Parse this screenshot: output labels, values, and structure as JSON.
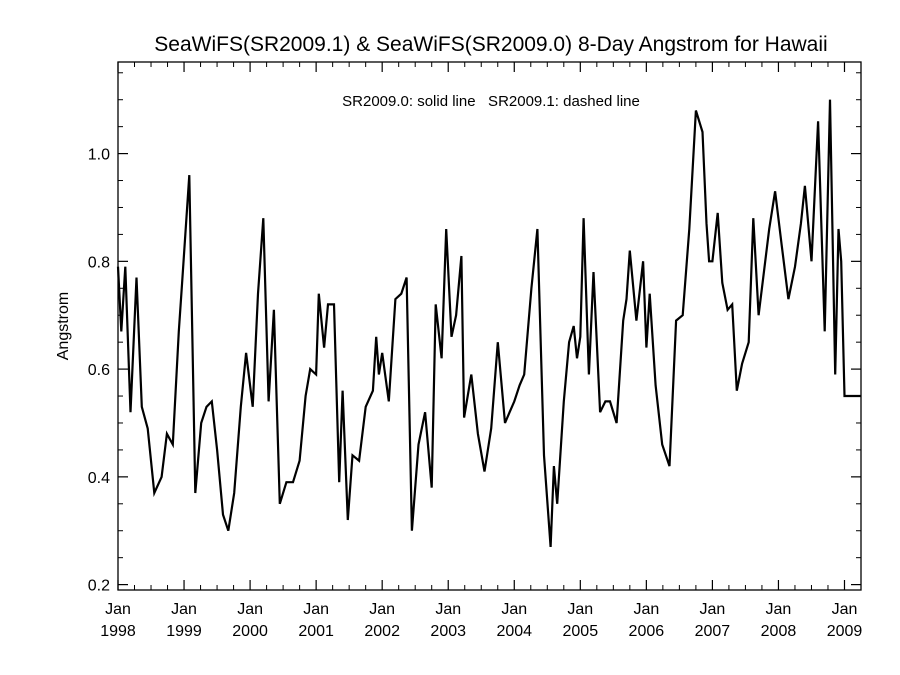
{
  "chart_data": {
    "type": "line",
    "title": "SeaWiFS(SR2009.1) & SeaWiFS(SR2009.0) 8-Day Angstrom for Hawaii",
    "annotation": "SR2009.0: solid line   SR2009.1: dashed line",
    "ylabel": "Angstrom",
    "xlabel": "",
    "xlim": [
      1998.0,
      2009.25
    ],
    "ylim": [
      0.19,
      1.17
    ],
    "y_ticks": [
      0.2,
      0.4,
      0.6,
      0.8,
      1.0
    ],
    "y_tick_labels": [
      "0.2",
      "0.4",
      "0.6",
      "0.8",
      "1.0"
    ],
    "x_ticks": [
      1998,
      1999,
      2000,
      2001,
      2002,
      2003,
      2004,
      2005,
      2006,
      2007,
      2008,
      2009
    ],
    "x_tick_labels": [
      [
        "Jan",
        "1998"
      ],
      [
        "Jan",
        "1999"
      ],
      [
        "Jan",
        "2000"
      ],
      [
        "Jan",
        "2001"
      ],
      [
        "Jan",
        "2002"
      ],
      [
        "Jan",
        "2003"
      ],
      [
        "Jan",
        "2004"
      ],
      [
        "Jan",
        "2005"
      ],
      [
        "Jan",
        "2006"
      ],
      [
        "Jan",
        "2007"
      ],
      [
        "Jan",
        "2008"
      ],
      [
        "Jan",
        "2009"
      ]
    ],
    "grid": false,
    "line_color": "#000000",
    "series": [
      {
        "style": "solid",
        "x": [
          1998.0,
          1998.05,
          1998.11,
          1998.19,
          1998.28,
          1998.36,
          1998.45,
          1998.55,
          1998.66,
          1998.74,
          1998.83,
          1998.92,
          1998.97,
          1999.08,
          1999.17,
          1999.26,
          1999.34,
          1999.42,
          1999.5,
          1999.59,
          1999.67,
          1999.76,
          1999.86,
          1999.94,
          2000.04,
          2000.12,
          2000.2,
          2000.28,
          2000.36,
          2000.45,
          2000.55,
          2000.65,
          2000.75,
          2000.84,
          2000.91,
          2001.0,
          2001.04,
          2001.12,
          2001.18,
          2001.27,
          2001.35,
          2001.4,
          2001.48,
          2001.55,
          2001.65,
          2001.75,
          2001.86,
          2001.91,
          2001.95,
          2002.0,
          2002.1,
          2002.2,
          2002.29,
          2002.37,
          2002.45,
          2002.55,
          2002.65,
          2002.75,
          2002.81,
          2002.9,
          2002.97,
          2003.05,
          2003.12,
          2003.2,
          2003.24,
          2003.35,
          2003.45,
          2003.55,
          2003.65,
          2003.75,
          2003.86,
          2003.93,
          2004.0,
          2004.08,
          2004.15,
          2004.26,
          2004.35,
          2004.45,
          2004.55,
          2004.6,
          2004.65,
          2004.75,
          2004.83,
          2004.9,
          2004.95,
          2005.0,
          2005.05,
          2005.13,
          2005.2,
          2005.3,
          2005.38,
          2005.45,
          2005.55,
          2005.65,
          2005.7,
          2005.75,
          2005.85,
          2005.95,
          2006.0,
          2006.05,
          2006.14,
          2006.24,
          2006.35,
          2006.45,
          2006.55,
          2006.65,
          2006.75,
          2006.85,
          2006.91,
          2006.95,
          2007.0,
          2007.08,
          2007.15,
          2007.23,
          2007.3,
          2007.37,
          2007.45,
          2007.55,
          2007.62,
          2007.7,
          2007.78,
          2007.86,
          2007.95,
          2008.05,
          2008.15,
          2008.25,
          2008.34,
          2008.4,
          2008.5,
          2008.6,
          2008.7,
          2008.78,
          2008.86,
          2008.91,
          2008.95,
          2009.0,
          2009.05,
          2009.1,
          2009.15,
          2009.25
        ],
        "y": [
          0.79,
          0.67,
          0.79,
          0.52,
          0.77,
          0.53,
          0.49,
          0.37,
          0.4,
          0.48,
          0.46,
          0.67,
          0.76,
          0.96,
          0.37,
          0.5,
          0.53,
          0.54,
          0.45,
          0.33,
          0.3,
          0.37,
          0.53,
          0.63,
          0.53,
          0.74,
          0.88,
          0.54,
          0.71,
          0.35,
          0.39,
          0.39,
          0.43,
          0.55,
          0.6,
          0.59,
          0.74,
          0.64,
          0.72,
          0.72,
          0.39,
          0.56,
          0.32,
          0.44,
          0.43,
          0.53,
          0.56,
          0.66,
          0.59,
          0.63,
          0.54,
          0.73,
          0.74,
          0.77,
          0.3,
          0.46,
          0.52,
          0.38,
          0.72,
          0.62,
          0.86,
          0.66,
          0.7,
          0.81,
          0.51,
          0.59,
          0.48,
          0.41,
          0.49,
          0.65,
          0.5,
          0.52,
          0.54,
          0.57,
          0.59,
          0.75,
          0.86,
          0.44,
          0.27,
          0.42,
          0.35,
          0.54,
          0.65,
          0.68,
          0.62,
          0.66,
          0.88,
          0.59,
          0.78,
          0.52,
          0.54,
          0.54,
          0.5,
          0.69,
          0.73,
          0.82,
          0.69,
          0.8,
          0.64,
          0.74,
          0.57,
          0.46,
          0.42,
          0.69,
          0.7,
          0.86,
          1.08,
          1.04,
          0.87,
          0.8,
          0.8,
          0.89,
          0.76,
          0.71,
          0.72,
          0.56,
          0.61,
          0.65,
          0.88,
          0.7,
          0.78,
          0.86,
          0.93,
          0.83,
          0.73,
          0.79,
          0.87,
          0.94,
          0.8,
          1.06,
          0.67,
          1.1,
          0.59,
          0.86,
          0.8,
          0.55,
          0.55,
          0.55,
          0.55,
          0.55
        ]
      }
    ]
  }
}
